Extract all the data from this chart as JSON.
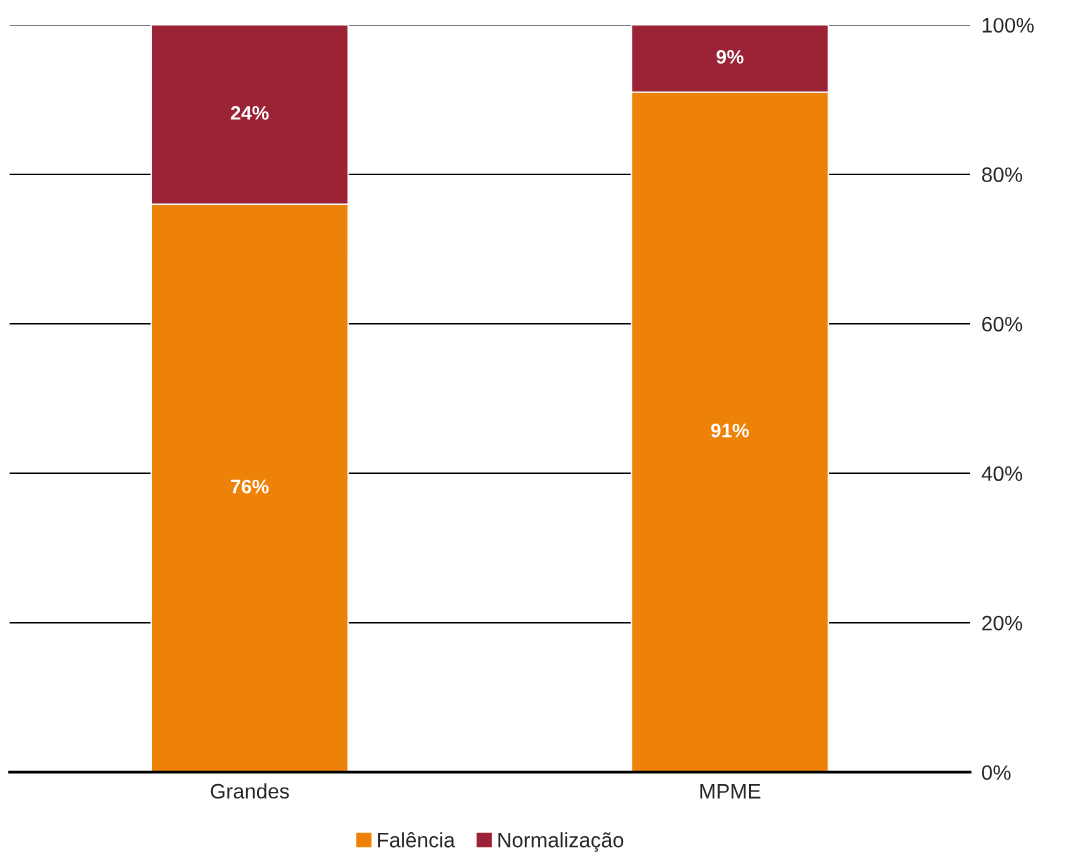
{
  "chart_data": {
    "type": "bar",
    "stacked": true,
    "categories": [
      "Grandes",
      "MPME"
    ],
    "series": [
      {
        "name": "Falência",
        "color": "#ee8208",
        "values": [
          76,
          91
        ],
        "value_labels": [
          "76%",
          "91%"
        ]
      },
      {
        "name": "Normalização",
        "color": "#9b2335",
        "values": [
          24,
          9
        ],
        "value_labels": [
          "24%",
          "9%"
        ]
      }
    ],
    "ylim": [
      0,
      100
    ],
    "yticks": [
      {
        "value": 0,
        "label": "0%"
      },
      {
        "value": 20,
        "label": "20%"
      },
      {
        "value": 40,
        "label": "40%"
      },
      {
        "value": 60,
        "label": "60%"
      },
      {
        "value": 80,
        "label": "80%"
      },
      {
        "value": 100,
        "label": "100%"
      }
    ],
    "grid": "y",
    "legend": "bottom"
  }
}
